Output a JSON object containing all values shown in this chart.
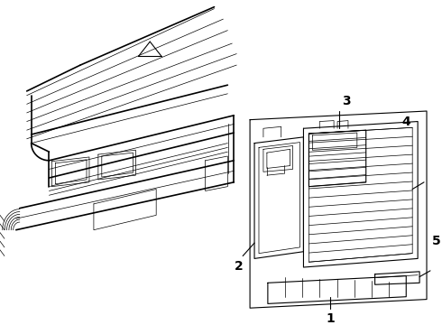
{
  "background_color": "#ffffff",
  "line_color": "#000000",
  "fig_width": 4.9,
  "fig_height": 3.6,
  "dpi": 100,
  "lw_thick": 1.2,
  "lw_med": 0.8,
  "lw_thin": 0.5
}
